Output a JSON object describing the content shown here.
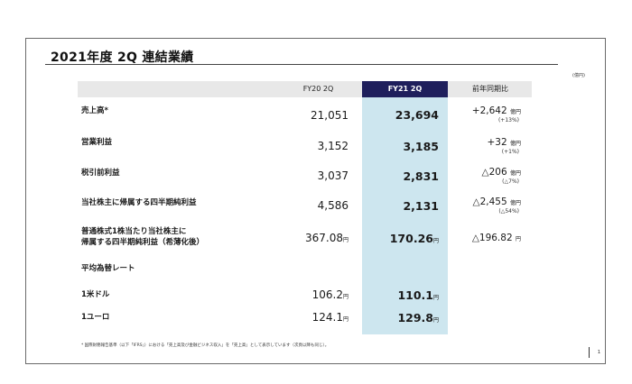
{
  "title": "2021年度 2Q 連結業績",
  "unit": "(億円)",
  "headers": {
    "col1": "FY20 2Q",
    "col2": "FY21 2Q",
    "col3": "前年同期比"
  },
  "rows": [
    {
      "label": "売上高*",
      "fy20": "21,051",
      "fy21": "23,694",
      "change": "+2,642",
      "change_unit": "億円",
      "pct": "(+13%)"
    },
    {
      "label": "営業利益",
      "fy20": "3,152",
      "fy21": "3,185",
      "change": "+32",
      "change_unit": "億円",
      "pct": "(+1%)"
    },
    {
      "label": "税引前利益",
      "fy20": "3,037",
      "fy21": "2,831",
      "change": "△206",
      "change_unit": "億円",
      "pct": "(△7%)"
    },
    {
      "label": "当社株主に帰属する四半期純利益",
      "fy20": "4,586",
      "fy21": "2,131",
      "change": "△2,455",
      "change_unit": "億円",
      "pct": "(△54%)"
    }
  ],
  "eps": {
    "label_line1": "普通株式1株当たり当社株主に",
    "label_line2": "帰属する四半期純利益（希薄化後）",
    "fy20": "367.08",
    "fy20_unit": "円",
    "fy21": "170.26",
    "fy21_unit": "円",
    "change": "△196.82",
    "change_unit": "円"
  },
  "fx_heading": "平均為替レート",
  "fx": [
    {
      "label": "1米ドル",
      "fy20": "106.2",
      "fy21": "110.1",
      "unit": "円"
    },
    {
      "label": "1ユーロ",
      "fy20": "124.1",
      "fy21": "129.8",
      "unit": "円"
    }
  ],
  "footnote": "* 国際財務報告基準（以下「IFRS」）における「売上高及び金融ビジネス収入」を「売上高」として表示しています（次頁以降も同じ）。",
  "page_number": "1"
}
